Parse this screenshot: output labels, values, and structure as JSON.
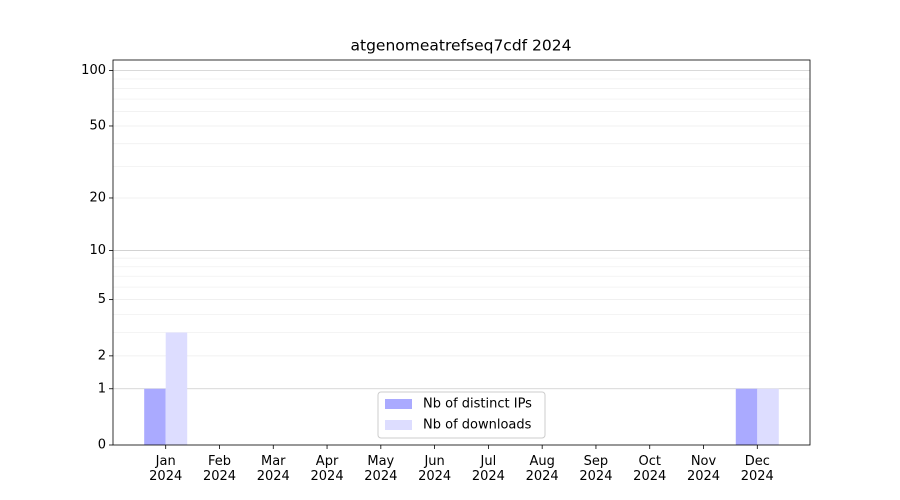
{
  "chart_data": {
    "type": "bar",
    "title": "atgenomeatrefseq7cdf 2024",
    "categories": [
      "Jan 2024",
      "Feb 2024",
      "Mar 2024",
      "Apr 2024",
      "May 2024",
      "Jun 2024",
      "Jul 2024",
      "Aug 2024",
      "Sep 2024",
      "Oct 2024",
      "Nov 2024",
      "Dec 2024"
    ],
    "series": [
      {
        "name": "Nb of distinct IPs",
        "color": "#aaaaff",
        "values": [
          1,
          0,
          0,
          0,
          0,
          0,
          0,
          0,
          0,
          0,
          0,
          1
        ]
      },
      {
        "name": "Nb of downloads",
        "color": "#ddddff",
        "values": [
          3,
          0,
          0,
          0,
          0,
          0,
          0,
          0,
          0,
          0,
          0,
          1
        ]
      }
    ],
    "yscale": "log1p",
    "ylim": [
      0,
      114
    ],
    "yticks": [
      0,
      1,
      2,
      5,
      10,
      20,
      50,
      100
    ],
    "minor_yticks": [
      3,
      4,
      6,
      7,
      8,
      9,
      30,
      40,
      60,
      70,
      80,
      90
    ],
    "grid": true,
    "legend": "lower center"
  }
}
